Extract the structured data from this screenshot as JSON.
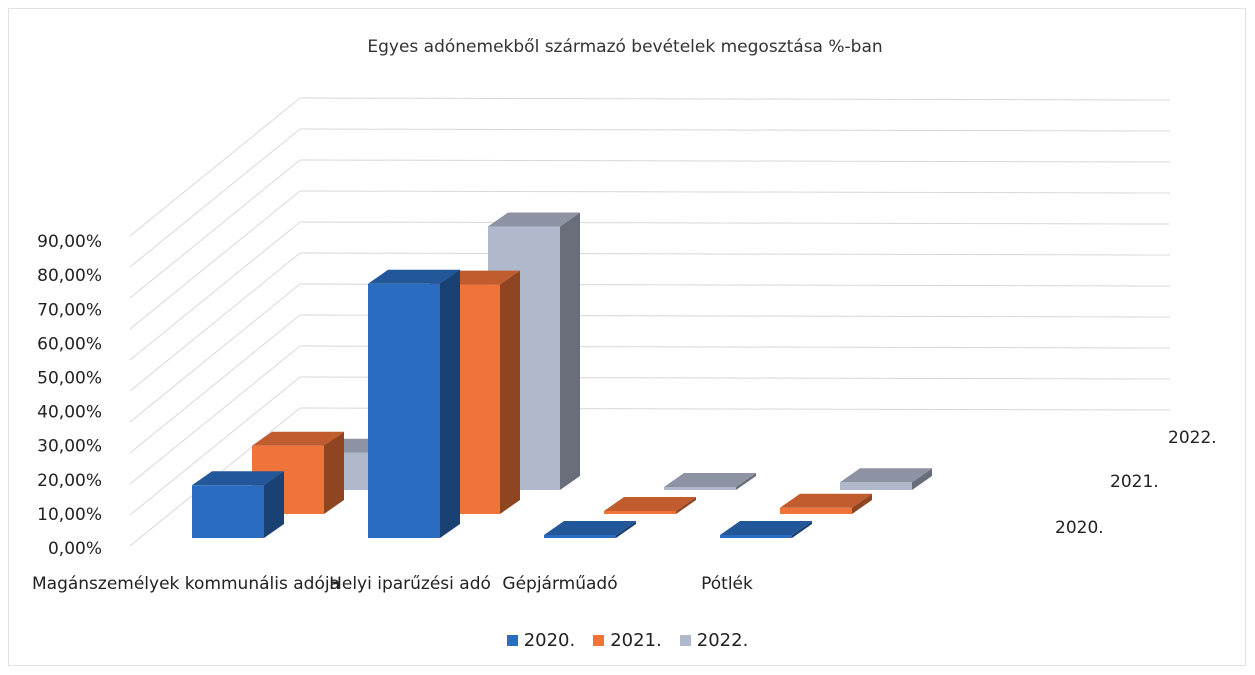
{
  "chart_data": {
    "type": "bar",
    "title": "Egyes adónemekből származó bevételek megosztása %-ban",
    "categories": [
      "Magánszemélyek kommunális adója",
      "Helyi iparűzési adó",
      "Gépjárműadó",
      "Pótlék"
    ],
    "series": [
      {
        "name": "2020.",
        "color": "#2a6dc0",
        "values": [
          17.0,
          82.0,
          0.3,
          0.4
        ]
      },
      {
        "name": "2021.",
        "color": "#f07339",
        "values": [
          22.0,
          74.0,
          0.3,
          2.0
        ]
      },
      {
        "name": "2022.",
        "color": "#b0b8cc",
        "values": [
          12.0,
          85.0,
          0.3,
          2.5
        ]
      }
    ],
    "ytick_labels": [
      "0,00%",
      "10,00%",
      "20,00%",
      "30,00%",
      "40,00%",
      "50,00%",
      "60,00%",
      "70,00%",
      "80,00%",
      "90,00%"
    ],
    "ylim": [
      0,
      100
    ],
    "depth_labels": [
      "2020.",
      "2021.",
      "2022."
    ],
    "legend_position": "bottom",
    "grid": true
  }
}
